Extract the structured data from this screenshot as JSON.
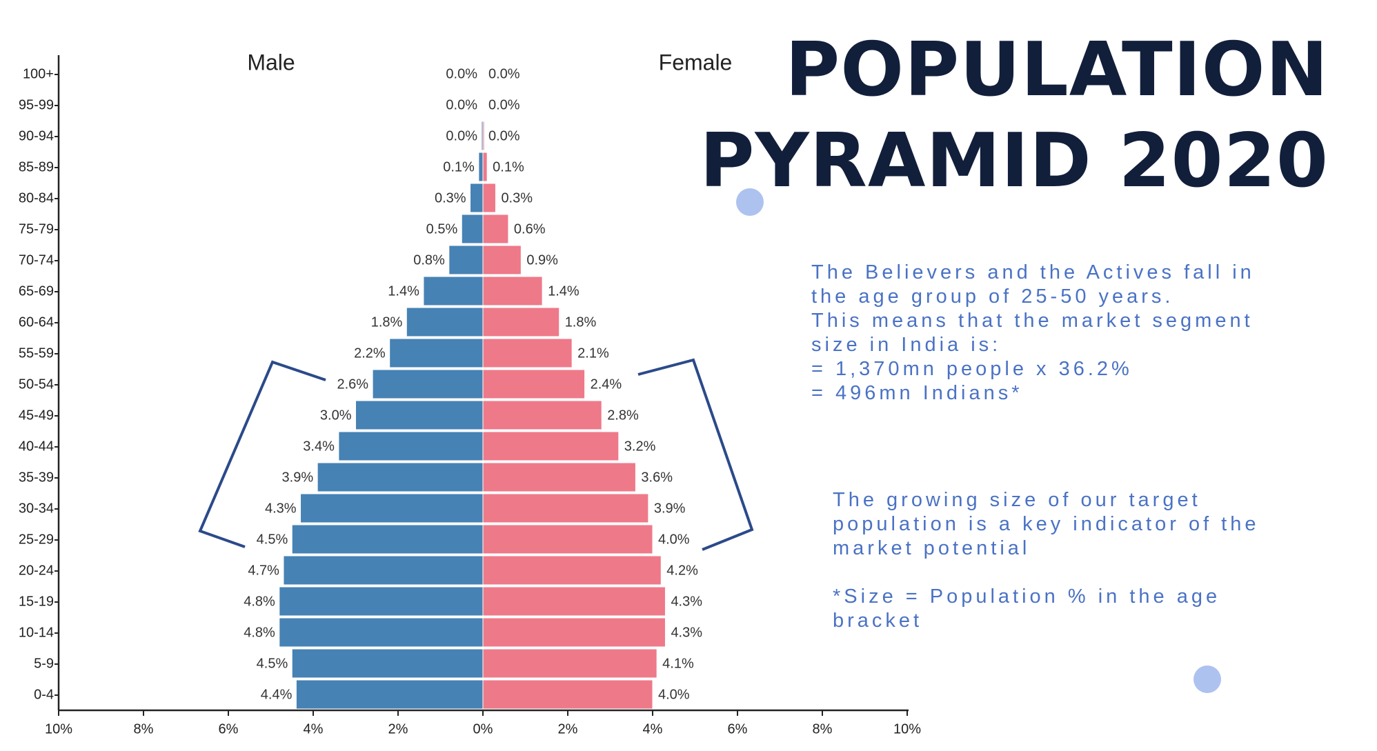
{
  "title": {
    "line1": "POPULATION",
    "line2": "PYRAMID 2020"
  },
  "notes": {
    "block1": [
      "The Believers and the Actives fall in",
      "the age group of 25-50 years.",
      "This means that the market segment",
      "size in India is:",
      "= 1,370mn people x 36.2%",
      "= 496mn Indians*"
    ],
    "block2": [
      "The growing size of our target",
      "population is a key indicator of the",
      "market potential"
    ],
    "block3": [
      "*Size = Population % in the age",
      "bracket"
    ]
  },
  "chart_data": {
    "type": "bar",
    "orientation": "horizontal-pyramid",
    "categories": [
      "100+",
      "95-99",
      "90-94",
      "85-89",
      "80-84",
      "75-79",
      "70-74",
      "65-69",
      "60-64",
      "55-59",
      "50-54",
      "45-49",
      "40-44",
      "35-39",
      "30-34",
      "25-29",
      "20-24",
      "15-19",
      "10-14",
      "5-9",
      "0-4"
    ],
    "series": [
      {
        "name": "Male",
        "color": "#4682b4",
        "values": [
          0.0,
          0.0,
          0.0,
          0.1,
          0.3,
          0.5,
          0.8,
          1.4,
          1.8,
          2.2,
          2.6,
          3.0,
          3.4,
          3.9,
          4.3,
          4.5,
          4.7,
          4.8,
          4.8,
          4.5,
          4.4
        ],
        "labels": [
          "0.0%",
          "0.0%",
          "0.0%",
          "0.1%",
          "0.3%",
          "0.5%",
          "0.8%",
          "1.4%",
          "1.8%",
          "2.2%",
          "2.6%",
          "3.0%",
          "3.4%",
          "3.9%",
          "4.3%",
          "4.5%",
          "4.7%",
          "4.8%",
          "4.8%",
          "4.5%",
          "4.4%"
        ]
      },
      {
        "name": "Female",
        "color": "#ee7989",
        "values": [
          0.0,
          0.0,
          0.0,
          0.1,
          0.3,
          0.6,
          0.9,
          1.4,
          1.8,
          2.1,
          2.4,
          2.8,
          3.2,
          3.6,
          3.9,
          4.0,
          4.2,
          4.3,
          4.3,
          4.1,
          4.0
        ],
        "labels": [
          "0.0%",
          "0.0%",
          "0.0%",
          "0.1%",
          "0.3%",
          "0.6%",
          "0.9%",
          "1.4%",
          "1.8%",
          "2.1%",
          "2.4%",
          "2.8%",
          "3.2%",
          "3.6%",
          "3.9%",
          "4.0%",
          "4.2%",
          "4.3%",
          "4.3%",
          "4.1%",
          "4.0%"
        ]
      }
    ],
    "xlim": [
      -10,
      10
    ],
    "xticks": [
      "10%",
      "8%",
      "6%",
      "4%",
      "2%",
      "0%",
      "2%",
      "4%",
      "6%",
      "8%",
      "10%"
    ],
    "xlabel": "",
    "ylabel": "",
    "grid": false,
    "legend": "top"
  },
  "colors": {
    "title": "#121f3b",
    "note_text": "#4a72c4",
    "bracket": "#2b4a8a",
    "dot": "#adc2ef"
  }
}
